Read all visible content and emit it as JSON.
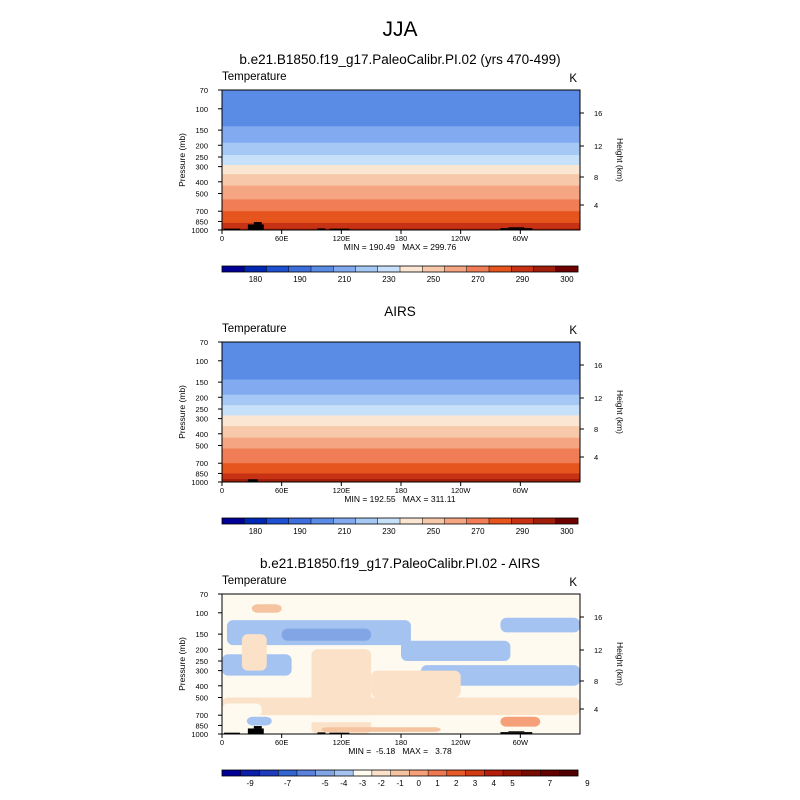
{
  "page_title": "JJA",
  "chart_data": [
    {
      "type": "heatmap",
      "title": "b.e21.B1850.f19_g17.PaleoCalibr.PI.02 (yrs 470-499)",
      "variable": "Temperature",
      "units": "K",
      "ylabel": "Pressure (mb)",
      "y2label": "Height (km)",
      "x_ticks": [
        "0",
        "60E",
        "120E",
        "180",
        "120W",
        "60W"
      ],
      "x_tick_values": [
        0,
        60,
        120,
        180,
        240,
        300
      ],
      "xlim": [
        0,
        360
      ],
      "y_ticks": [
        "70",
        "100",
        "150",
        "200",
        "250",
        "300",
        "400",
        "500",
        "700",
        "850",
        "1000"
      ],
      "y_tick_values": [
        70,
        100,
        150,
        200,
        250,
        300,
        400,
        500,
        700,
        850,
        1000
      ],
      "ylim": [
        1000,
        70
      ],
      "height_ticks": [
        "4",
        "8",
        "12",
        "16"
      ],
      "height_tick_values": [
        4,
        8,
        12,
        16
      ],
      "min_label": "MIN = 190.49   MAX = 299.76",
      "min": 190.49,
      "max": 299.76,
      "levels": [
        175,
        180,
        185,
        190,
        200,
        210,
        220,
        230,
        240,
        250,
        260,
        270,
        280,
        290,
        295,
        300
      ],
      "colorbar_labels": [
        "180",
        "190",
        "210",
        "230",
        "250",
        "270",
        "290",
        "300"
      ],
      "colorbar_label_index": [
        1,
        3,
        5,
        7,
        9,
        11,
        13,
        15
      ],
      "profile": [
        {
          "p": 70,
          "value": 201
        },
        {
          "p": 100,
          "value": 203
        },
        {
          "p": 130,
          "value": 208
        },
        {
          "p": 150,
          "value": 212
        },
        {
          "p": 200,
          "value": 222
        },
        {
          "p": 250,
          "value": 232
        },
        {
          "p": 300,
          "value": 242
        },
        {
          "p": 400,
          "value": 256
        },
        {
          "p": 500,
          "value": 266
        },
        {
          "p": 700,
          "value": 280
        },
        {
          "p": 850,
          "value": 288
        },
        {
          "p": 1000,
          "value": 296
        }
      ]
    },
    {
      "type": "heatmap",
      "title": "AIRS",
      "variable": "Temperature",
      "units": "K",
      "ylabel": "Pressure (mb)",
      "y2label": "Height (km)",
      "x_ticks": [
        "0",
        "60E",
        "120E",
        "180",
        "120W",
        "60W"
      ],
      "x_tick_values": [
        0,
        60,
        120,
        180,
        240,
        300
      ],
      "xlim": [
        0,
        360
      ],
      "y_ticks": [
        "70",
        "100",
        "150",
        "200",
        "250",
        "300",
        "400",
        "500",
        "700",
        "850",
        "1000"
      ],
      "y_tick_values": [
        70,
        100,
        150,
        200,
        250,
        300,
        400,
        500,
        700,
        850,
        1000
      ],
      "ylim": [
        1000,
        70
      ],
      "height_ticks": [
        "4",
        "8",
        "12",
        "16"
      ],
      "height_tick_values": [
        4,
        8,
        12,
        16
      ],
      "min_label": "MIN = 192.55   MAX = 311.11",
      "min": 192.55,
      "max": 311.11,
      "levels": [
        175,
        180,
        185,
        190,
        200,
        210,
        220,
        230,
        240,
        250,
        260,
        270,
        280,
        290,
        295,
        300
      ],
      "colorbar_labels": [
        "180",
        "190",
        "210",
        "230",
        "250",
        "270",
        "290",
        "300"
      ],
      "colorbar_label_index": [
        1,
        3,
        5,
        7,
        9,
        11,
        13,
        15
      ],
      "profile": [
        {
          "p": 70,
          "value": 200
        },
        {
          "p": 100,
          "value": 202
        },
        {
          "p": 130,
          "value": 207
        },
        {
          "p": 150,
          "value": 212
        },
        {
          "p": 200,
          "value": 222
        },
        {
          "p": 250,
          "value": 233
        },
        {
          "p": 300,
          "value": 244
        },
        {
          "p": 400,
          "value": 257
        },
        {
          "p": 500,
          "value": 267
        },
        {
          "p": 700,
          "value": 281
        },
        {
          "p": 850,
          "value": 290
        },
        {
          "p": 1000,
          "value": 298
        }
      ]
    },
    {
      "type": "heatmap",
      "title": "b.e21.B1850.f19_g17.PaleoCalibr.PI.02 - AIRS",
      "variable": "Temperature",
      "units": "K",
      "ylabel": "Pressure (mb)",
      "y2label": "Height (km)",
      "x_ticks": [
        "0",
        "60E",
        "120E",
        "180",
        "120W",
        "60W"
      ],
      "x_tick_values": [
        0,
        60,
        120,
        180,
        240,
        300
      ],
      "xlim": [
        0,
        360
      ],
      "y_ticks": [
        "70",
        "100",
        "150",
        "200",
        "250",
        "300",
        "400",
        "500",
        "700",
        "850",
        "1000"
      ],
      "y_tick_values": [
        70,
        100,
        150,
        200,
        250,
        300,
        400,
        500,
        700,
        850,
        1000
      ],
      "ylim": [
        1000,
        70
      ],
      "height_ticks": [
        "4",
        "8",
        "12",
        "16"
      ],
      "height_tick_values": [
        4,
        8,
        12,
        16
      ],
      "min_label": "MIN =  -5.18   MAX =   3.78",
      "min": -5.18,
      "max": 3.78,
      "levels": [
        -10,
        -9,
        -8,
        -7,
        -6,
        -5,
        -4,
        -3,
        -2,
        -1,
        0,
        1,
        2,
        3,
        4,
        5,
        6,
        7,
        8,
        9
      ],
      "colorbar_labels": [
        "-9",
        "-7",
        "-5",
        "-4",
        "-3",
        "-2",
        "-1",
        "0",
        "1",
        "2",
        "3",
        "4",
        "5",
        "7",
        "9"
      ],
      "colorbar_label_index": [
        1,
        3,
        5,
        6,
        7,
        8,
        9,
        10,
        11,
        12,
        13,
        14,
        15,
        17,
        19
      ],
      "base_value": -1.5,
      "anomalies": [
        {
          "lon": [
            0,
            360
          ],
          "p": [
            1000,
            70
          ],
          "value": -2.5
        },
        {
          "lon": [
            5,
            190
          ],
          "p": [
            185,
            115
          ],
          "value": -3.5
        },
        {
          "lon": [
            60,
            150
          ],
          "p": [
            170,
            135
          ],
          "value": -4.5
        },
        {
          "lon": [
            280,
            360
          ],
          "p": [
            145,
            110
          ],
          "value": -3.5
        },
        {
          "lon": [
            180,
            290
          ],
          "p": [
            250,
            170
          ],
          "value": -3.5
        },
        {
          "lon": [
            200,
            360
          ],
          "p": [
            400,
            270
          ],
          "value": -3.5
        },
        {
          "lon": [
            0,
            70
          ],
          "p": [
            330,
            220
          ],
          "value": -3.5
        },
        {
          "lon": [
            20,
            45
          ],
          "p": [
            300,
            150
          ],
          "value": -1.5
        },
        {
          "lon": [
            90,
            150
          ],
          "p": [
            1000,
            200
          ],
          "value": -1.5
        },
        {
          "lon": [
            150,
            240
          ],
          "p": [
            500,
            300
          ],
          "value": -1.5
        },
        {
          "lon": [
            0,
            360
          ],
          "p": [
            700,
            500
          ],
          "value": -1.5
        },
        {
          "lon": [
            0,
            40
          ],
          "p": [
            720,
            560
          ],
          "value": -2.5
        },
        {
          "lon": [
            30,
            60
          ],
          "p": [
            100,
            85
          ],
          "value": -0.5
        },
        {
          "lon": [
            0,
            360
          ],
          "p": [
            800,
            700
          ],
          "value": -2.5
        },
        {
          "lon": [
            25,
            50
          ],
          "p": [
            850,
            720
          ],
          "value": -3.5
        },
        {
          "lon": [
            100,
            220
          ],
          "p": [
            960,
            880
          ],
          "value": -0.5
        },
        {
          "lon": [
            280,
            320
          ],
          "p": [
            870,
            720
          ],
          "value": 0.5
        }
      ]
    }
  ]
}
